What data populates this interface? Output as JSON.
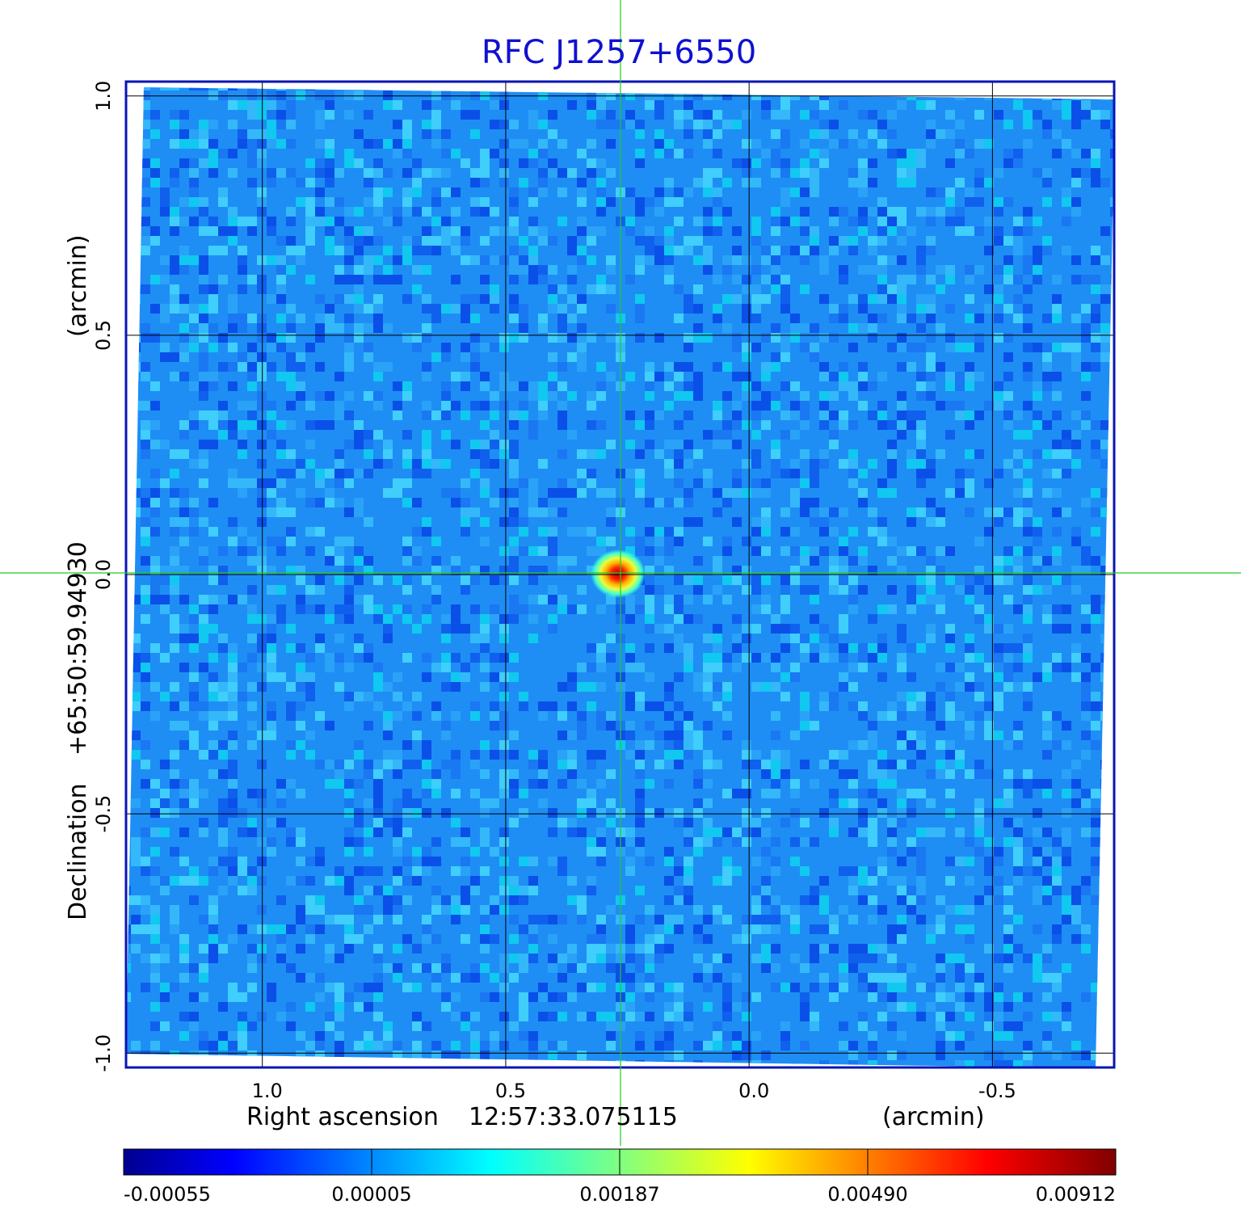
{
  "chart_data": {
    "type": "heatmap",
    "title": "RFC J1257+6550",
    "xlabel": "Right ascension",
    "x_reference": "12:57:33.075115",
    "x_unit": "(arcmin)",
    "ylabel": "Declination",
    "y_reference": "+65:50:59.94930",
    "y_unit": "(arcmin)",
    "xlim": [
      1.28,
      -0.75
    ],
    "ylim": [
      -1.03,
      1.03
    ],
    "x_ticks": [
      1.0,
      0.5,
      0.0,
      -0.5
    ],
    "x_tick_labels": [
      "1.0",
      "0.5",
      "0.0",
      "-0.5"
    ],
    "y_ticks": [
      1.0,
      0.5,
      0.0,
      -0.5,
      -1.0
    ],
    "y_tick_labels": [
      "1.0",
      "0.5",
      "0.0",
      "-0.5",
      "-1.0"
    ],
    "grid": true,
    "crosshair": {
      "x": 0.27,
      "y": 0.0
    },
    "peak": {
      "x": 0.27,
      "y": 0.0,
      "value": 0.00912
    },
    "colorbar": {
      "colormap": "jet",
      "tick_values": [
        -0.00055,
        5e-05,
        0.00187,
        0.0049,
        0.00912
      ],
      "tick_labels": [
        "-0.00055",
        "0.00005",
        "0.00187",
        "0.00490",
        "0.00912"
      ]
    }
  },
  "colors": {
    "title": "#1010d0",
    "frame": "#0a14b4",
    "grid": "#000000",
    "crosshair": "#22cc22",
    "background_noise": "#1e8ef5"
  }
}
